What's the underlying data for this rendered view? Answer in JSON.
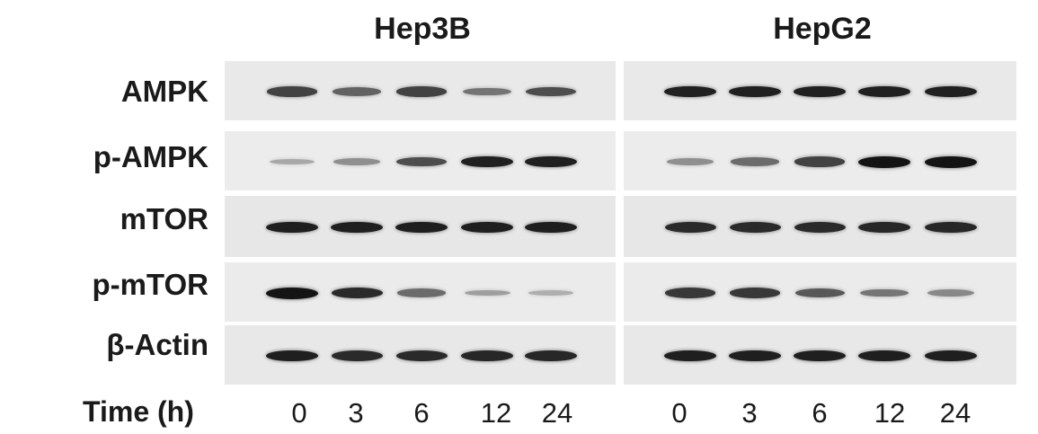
{
  "figure": {
    "cell_lines": [
      "Hep3B",
      "HepG2"
    ],
    "proteins": [
      "AMPK",
      "p-AMPK",
      "mTOR",
      "p-mTOR",
      "β-Actin"
    ],
    "time_axis_label": "Time (h)",
    "time_points": [
      "0",
      "3",
      "6",
      "12",
      "24"
    ],
    "band_intensity": {
      "Hep3B": {
        "AMPK": [
          0.8,
          0.65,
          0.8,
          0.55,
          0.75
        ],
        "p-AMPK": [
          0.25,
          0.4,
          0.75,
          0.95,
          0.95
        ],
        "mTOR": [
          0.95,
          0.95,
          0.95,
          0.95,
          0.95
        ],
        "p-mTOR": [
          1.0,
          0.9,
          0.6,
          0.3,
          0.2
        ],
        "β-Actin": [
          0.95,
          0.9,
          0.9,
          0.92,
          0.92
        ]
      },
      "HepG2": {
        "AMPK": [
          0.95,
          0.95,
          0.95,
          0.95,
          0.95
        ],
        "p-AMPK": [
          0.4,
          0.6,
          0.8,
          1.0,
          1.0
        ],
        "mTOR": [
          0.9,
          0.9,
          0.9,
          0.92,
          0.92
        ],
        "p-mTOR": [
          0.85,
          0.85,
          0.7,
          0.55,
          0.45
        ],
        "β-Actin": [
          0.95,
          0.95,
          0.95,
          0.95,
          0.95
        ]
      }
    }
  }
}
